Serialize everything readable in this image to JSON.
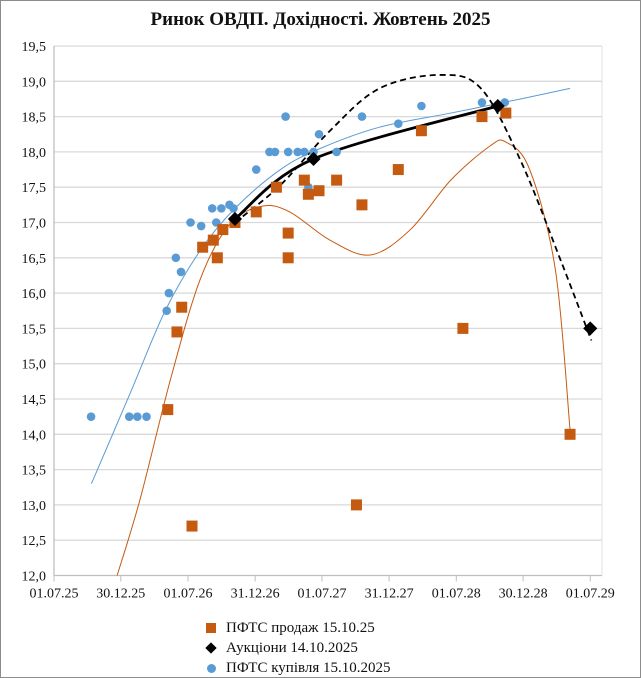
{
  "chart_data": {
    "type": "scatter",
    "title": "Ринок ОВДП. Дохідності.  Жовтень 2025",
    "xlabel": "",
    "ylabel": "",
    "xlim": [
      "2025-07-01",
      "2029-08-02"
    ],
    "ylim": [
      12.0,
      19.5
    ],
    "grid": true,
    "legend_position": "bottom",
    "x_tick_dates": [
      "2025-07-01",
      "2025-12-30",
      "2026-07-01",
      "2026-12-31",
      "2027-07-01",
      "2027-12-31",
      "2028-07-01",
      "2028-12-30",
      "2029-07-01"
    ],
    "x_tick_labels": [
      "01.07.25",
      "30.12.25",
      "01.07.26",
      "31.12.26",
      "01.07.27",
      "31.12.27",
      "01.07.28",
      "30.12.28",
      "01.07.29"
    ],
    "y_ticks": [
      12.0,
      12.5,
      13.0,
      13.5,
      14.0,
      14.5,
      15.0,
      15.5,
      16.0,
      16.5,
      17.0,
      17.5,
      18.0,
      18.5,
      19.0,
      19.5
    ],
    "y_tick_labels": [
      "12,0",
      "12,5",
      "13,0",
      "13,5",
      "14,0",
      "14,5",
      "15,0",
      "15,5",
      "16,0",
      "16,5",
      "17,0",
      "17,5",
      "18,0",
      "18,5",
      "19,0",
      "19,5"
    ],
    "series": [
      {
        "name": "ПФТС продаж 15.10.25",
        "marker": "square",
        "color": "#c55a11",
        "points": [
          [
            "2026-05-07",
            14.35
          ],
          [
            "2026-06-01",
            15.45
          ],
          [
            "2026-06-14",
            15.8
          ],
          [
            "2026-07-12",
            12.7
          ],
          [
            "2026-08-10",
            16.65
          ],
          [
            "2026-09-08",
            16.75
          ],
          [
            "2026-09-19",
            16.5
          ],
          [
            "2026-10-04",
            16.9
          ],
          [
            "2026-11-06",
            17.0
          ],
          [
            "2027-01-03",
            17.15
          ],
          [
            "2027-02-27",
            17.5
          ],
          [
            "2027-03-31",
            16.5
          ],
          [
            "2027-03-31",
            16.85
          ],
          [
            "2027-05-14",
            17.6
          ],
          [
            "2027-05-25",
            17.4
          ],
          [
            "2027-06-23",
            17.45
          ],
          [
            "2027-08-10",
            17.6
          ],
          [
            "2027-10-03",
            13.0
          ],
          [
            "2027-10-18",
            17.25
          ],
          [
            "2028-01-25",
            17.75
          ],
          [
            "2028-03-28",
            18.3
          ],
          [
            "2028-07-19",
            15.5
          ],
          [
            "2028-09-09",
            18.5
          ],
          [
            "2028-11-13",
            18.55
          ],
          [
            "2029-05-07",
            14.0
          ]
        ],
        "trendline": [
          [
            "2025-12-20",
            12.0
          ],
          [
            "2026-02-20",
            13.07
          ],
          [
            "2026-05-14",
            14.77
          ],
          [
            "2026-08-03",
            16.19
          ],
          [
            "2026-10-22",
            16.97
          ],
          [
            "2027-01-17",
            17.23
          ],
          [
            "2027-04-04",
            17.15
          ],
          [
            "2027-07-23",
            16.75
          ],
          [
            "2027-11-10",
            16.54
          ],
          [
            "2028-02-27",
            16.9
          ],
          [
            "2028-06-16",
            17.6
          ],
          [
            "2028-09-30",
            18.08
          ],
          [
            "2028-11-13",
            18.14
          ],
          [
            "2029-01-17",
            17.75
          ],
          [
            "2029-03-28",
            16.33
          ],
          [
            "2029-05-07",
            14.06
          ]
        ]
      },
      {
        "name": "Аукціони 14.10.2025",
        "marker": "diamond",
        "color": "#000000",
        "points": [
          [
            "2026-11-06",
            17.05
          ],
          [
            "2027-06-08",
            17.9
          ],
          [
            "2028-10-22",
            18.65
          ],
          [
            "2029-07-01",
            15.5
          ]
        ],
        "line_through_first_three": true,
        "trendline": [
          [
            "2026-11-06",
            17.0
          ],
          [
            "2027-03-10",
            17.53
          ],
          [
            "2027-07-23",
            18.3
          ],
          [
            "2027-12-05",
            18.9
          ],
          [
            "2028-05-18",
            19.09
          ],
          [
            "2028-09-06",
            18.9
          ],
          [
            "2028-12-23",
            17.88
          ],
          [
            "2029-04-11",
            16.47
          ],
          [
            "2029-07-04",
            15.33
          ]
        ]
      },
      {
        "name": "ПФТС купівля 15.10.2025",
        "marker": "circle",
        "color": "#5b9bd5",
        "points": [
          [
            "2025-10-10",
            14.25
          ],
          [
            "2026-01-22",
            14.25
          ],
          [
            "2026-02-13",
            14.25
          ],
          [
            "2026-03-10",
            14.25
          ],
          [
            "2026-05-04",
            15.75
          ],
          [
            "2026-05-10",
            16.0
          ],
          [
            "2026-05-29",
            16.5
          ],
          [
            "2026-06-12",
            16.3
          ],
          [
            "2026-07-08",
            17.0
          ],
          [
            "2026-08-06",
            16.95
          ],
          [
            "2026-09-05",
            17.2
          ],
          [
            "2026-09-16",
            17.0
          ],
          [
            "2026-09-30",
            17.2
          ],
          [
            "2026-10-22",
            17.25
          ],
          [
            "2026-11-02",
            17.2
          ],
          [
            "2027-01-03",
            17.75
          ],
          [
            "2027-02-08",
            18.0
          ],
          [
            "2027-02-23",
            18.0
          ],
          [
            "2027-03-24",
            18.5
          ],
          [
            "2027-03-31",
            18.0
          ],
          [
            "2027-04-26",
            18.0
          ],
          [
            "2027-05-14",
            18.0
          ],
          [
            "2027-05-25",
            17.5
          ],
          [
            "2027-06-08",
            18.0
          ],
          [
            "2027-06-23",
            18.25
          ],
          [
            "2027-08-10",
            18.0
          ],
          [
            "2027-10-18",
            18.5
          ],
          [
            "2028-01-25",
            18.4
          ],
          [
            "2028-03-28",
            18.65
          ],
          [
            "2028-09-09",
            18.7
          ],
          [
            "2028-11-10",
            18.7
          ]
        ],
        "trendline": [
          [
            "2025-10-11",
            13.3
          ],
          [
            "2026-01-26",
            14.6
          ],
          [
            "2026-04-30",
            15.75
          ],
          [
            "2026-08-03",
            16.6
          ],
          [
            "2026-11-06",
            17.2
          ],
          [
            "2027-03-10",
            17.75
          ],
          [
            "2027-06-27",
            18.05
          ],
          [
            "2027-12-05",
            18.35
          ],
          [
            "2028-06-16",
            18.55
          ],
          [
            "2028-12-23",
            18.75
          ],
          [
            "2029-05-07",
            18.9
          ]
        ]
      }
    ]
  }
}
